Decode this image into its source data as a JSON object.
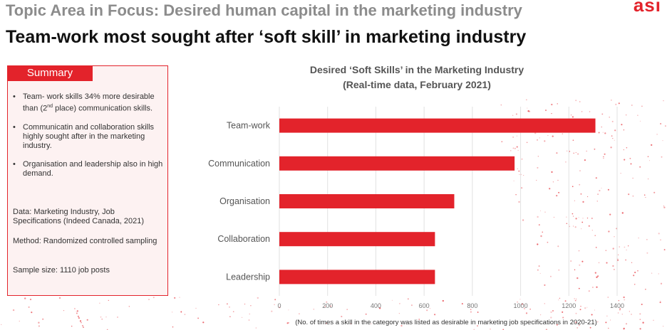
{
  "header": {
    "topic": "Topic Area in Focus: Desired human capital in the marketing industry",
    "headline": "Team-work most sought after ‘soft skill’ in marketing industry",
    "logo": "asi"
  },
  "summary": {
    "tab_label": "Summary",
    "bullets": [
      "Team- work skills 34% more desirable than (2nd place) communication skills.",
      "Communicatin and collaboration skills highly sought after in the marketing industry.",
      "Organisation and leadership also in high demand."
    ],
    "data_line": "Data: Marketing Industry, Job Specifications (Indeed Canada, 2021)",
    "method_line": "Method: Randomized controlled sampling",
    "sample_line": "Sample size: 1110 job posts"
  },
  "colors": {
    "accent": "#e3232b",
    "title_gray": "#8c8c8c",
    "summary_bg": "#fdf2f2"
  },
  "chart_data": {
    "type": "bar",
    "orientation": "horizontal",
    "title": "Desired ‘Soft Skills’ in the Marketing Industry",
    "subtitle": "(Real-time data, February 2021)",
    "categories": [
      "Team-work",
      "Communication",
      "Organisation",
      "Collaboration",
      "Leadership"
    ],
    "values": [
      1310,
      975,
      725,
      645,
      645
    ],
    "xlabel": "(No. of times a skill in the category was listed as desirable in marketing job specifications in 2020-21)",
    "xlim": [
      0,
      1400
    ],
    "xticks": [
      "0",
      "200",
      "400",
      "600",
      "800",
      "1000",
      "1200",
      "1400"
    ],
    "grid": true,
    "bar_color": "#e3232b"
  }
}
